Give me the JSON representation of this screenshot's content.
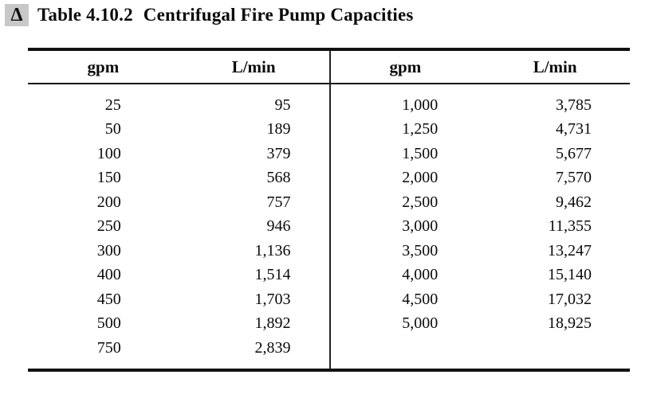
{
  "caption": {
    "marker_glyph": "Δ",
    "marker_bg": "#c8c8c8",
    "label": "Table 4.10.2",
    "title": "Centrifugal Fire Pump Capacities"
  },
  "table": {
    "left": {
      "headers": [
        "gpm",
        "L/min"
      ],
      "rows": [
        [
          "25",
          "95"
        ],
        [
          "50",
          "189"
        ],
        [
          "100",
          "379"
        ],
        [
          "150",
          "568"
        ],
        [
          "200",
          "757"
        ],
        [
          "250",
          "946"
        ],
        [
          "300",
          "1,136"
        ],
        [
          "400",
          "1,514"
        ],
        [
          "450",
          "1,703"
        ],
        [
          "500",
          "1,892"
        ],
        [
          "750",
          "2,839"
        ]
      ]
    },
    "right": {
      "headers": [
        "gpm",
        "L/min"
      ],
      "rows": [
        [
          "1,000",
          "3,785"
        ],
        [
          "1,250",
          "4,731"
        ],
        [
          "1,500",
          "5,677"
        ],
        [
          "2,000",
          "7,570"
        ],
        [
          "2,500",
          "9,462"
        ],
        [
          "3,000",
          "11,355"
        ],
        [
          "3,500",
          "13,247"
        ],
        [
          "4,000",
          "15,140"
        ],
        [
          "4,500",
          "17,032"
        ],
        [
          "5,000",
          "18,925"
        ]
      ]
    }
  },
  "colors": {
    "text": "#0a0a0a",
    "rule": "#111111",
    "marker_bg": "#c8c8c8",
    "background": "#ffffff"
  }
}
